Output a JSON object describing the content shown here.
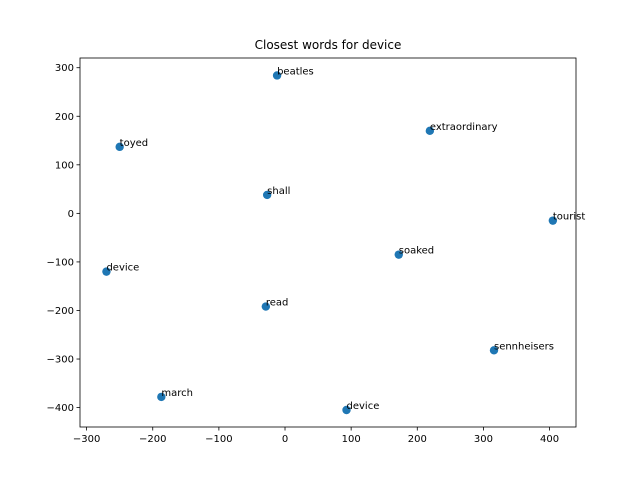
{
  "chart_data": {
    "type": "scatter",
    "title": "Closest words for device",
    "xlabel": "",
    "ylabel": "",
    "xlim": [
      -310,
      440
    ],
    "ylim": [
      -440,
      320
    ],
    "xticks": [
      -300,
      -200,
      -100,
      0,
      100,
      200,
      300,
      400
    ],
    "yticks": [
      -400,
      -300,
      -200,
      -100,
      0,
      100,
      200,
      300
    ],
    "xtick_labels": [
      "−300",
      "−200",
      "−100",
      "0",
      "100",
      "200",
      "300",
      "400"
    ],
    "ytick_labels": [
      "−400",
      "−300",
      "−200",
      "−100",
      "0",
      "100",
      "200",
      "300"
    ],
    "grid": false,
    "marker_color": "#1f77b4",
    "points": [
      {
        "label": "beatles",
        "x": -12,
        "y": 284
      },
      {
        "label": "extraordinary",
        "x": 219,
        "y": 170
      },
      {
        "label": "toyed",
        "x": -250,
        "y": 137
      },
      {
        "label": "shall",
        "x": -27,
        "y": 38
      },
      {
        "label": "tourist",
        "x": 405,
        "y": -15
      },
      {
        "label": "soaked",
        "x": 172,
        "y": -85
      },
      {
        "label": "device",
        "x": -270,
        "y": -120
      },
      {
        "label": "read",
        "x": -29,
        "y": -192
      },
      {
        "label": "sennheisers",
        "x": 316,
        "y": -282
      },
      {
        "label": "march",
        "x": -187,
        "y": -378
      },
      {
        "label": "device",
        "x": 93,
        "y": -405
      }
    ]
  }
}
